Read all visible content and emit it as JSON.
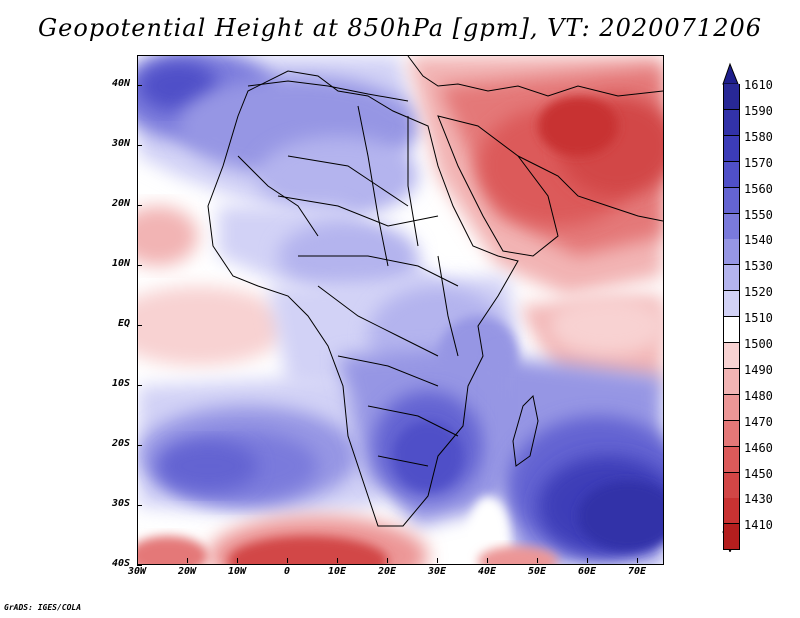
{
  "title": "Geopotential Height at 850hPa [gpm], VT: 2020071206",
  "footer": "GrADS: IGES/COLA",
  "axes": {
    "x_ticks": [
      "30W",
      "20W",
      "10W",
      "0",
      "10E",
      "20E",
      "30E",
      "40E",
      "50E",
      "60E",
      "70E"
    ],
    "y_ticks": [
      "40N",
      "30N",
      "20N",
      "10N",
      "EQ",
      "10S",
      "20S",
      "30S",
      "40S"
    ]
  },
  "legend": {
    "top_arrow_color": "#1e1e8c",
    "bottom_arrow_color": "#b4141e",
    "levels": [
      {
        "label": "1610",
        "color": "#282896"
      },
      {
        "label": "1590",
        "color": "#3232a8"
      },
      {
        "label": "1580",
        "color": "#3c3cb8"
      },
      {
        "label": "1570",
        "color": "#5050c8"
      },
      {
        "label": "1560",
        "color": "#6464d2"
      },
      {
        "label": "1550",
        "color": "#7a7adc"
      },
      {
        "label": "1540",
        "color": "#9696e4"
      },
      {
        "label": "1530",
        "color": "#b4b4ee"
      },
      {
        "label": "1520",
        "color": "#d2d2f6"
      },
      {
        "label": "1510",
        "color": "#ffffff"
      },
      {
        "label": "1500",
        "color": "#f8d2d2"
      },
      {
        "label": "1490",
        "color": "#f2b4b4"
      },
      {
        "label": "1480",
        "color": "#ec9696"
      },
      {
        "label": "1470",
        "color": "#e47878"
      },
      {
        "label": "1460",
        "color": "#dc5a5a"
      },
      {
        "label": "1450",
        "color": "#d24646"
      },
      {
        "label": "1430",
        "color": "#c83232"
      },
      {
        "label": "1410",
        "color": "#b41e1e"
      }
    ]
  }
}
